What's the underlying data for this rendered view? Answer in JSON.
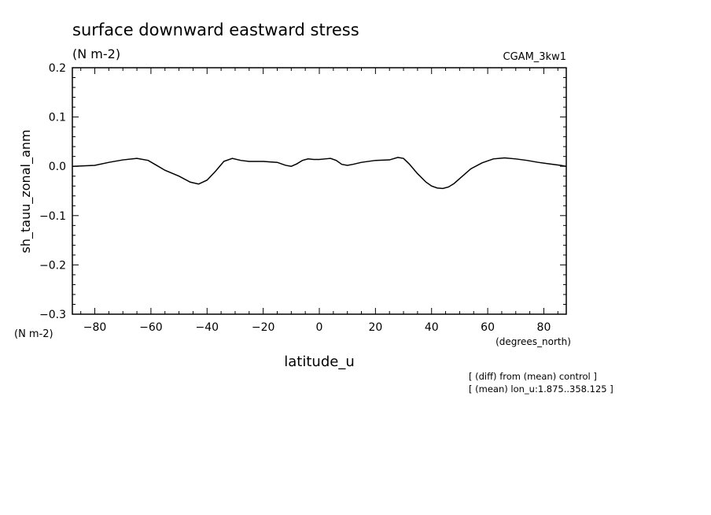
{
  "chart_data": {
    "type": "line",
    "title": "surface downward eastward stress",
    "title_units": "(N m-2)",
    "dataset_label": "CGAM_3kw1",
    "ylabel": "sh_tauu_zonal_anm",
    "y_units": "(N m-2)",
    "xlabel": "latitude_u",
    "x_units": "(degrees_north)",
    "xlim": [
      -88,
      88
    ],
    "ylim": [
      -0.3,
      0.2
    ],
    "xticks": [
      -80,
      -60,
      -40,
      -20,
      0,
      20,
      40,
      60,
      80
    ],
    "xtick_labels": [
      "−80",
      "−60",
      "−40",
      "−20",
      "0",
      "20",
      "40",
      "60",
      "80"
    ],
    "yticks": [
      0.2,
      0.1,
      0.0,
      -0.1,
      -0.2,
      -0.3
    ],
    "ytick_labels": [
      "0.2",
      "0.1",
      "0.0",
      "−0.1",
      "−0.2",
      "−0.3"
    ],
    "grid": false,
    "line_color": "#000000",
    "notes": [
      "[ (diff) from (mean) control ]",
      "[ (mean) lon_u:1.875..358.125 ]"
    ],
    "x": [
      -88,
      -80,
      -75,
      -70,
      -65,
      -61,
      -58,
      -55,
      -50,
      -46,
      -43,
      -40,
      -37,
      -34,
      -31,
      -28,
      -25,
      -20,
      -15,
      -12,
      -10,
      -8,
      -6,
      -4,
      -2,
      0,
      2,
      4,
      6,
      8,
      10,
      12,
      15,
      20,
      25,
      28,
      30,
      32,
      35,
      38,
      40,
      42,
      44,
      46,
      48,
      50,
      54,
      58,
      62,
      66,
      70,
      74,
      78,
      82,
      86,
      88
    ],
    "y": [
      0.0,
      0.002,
      0.008,
      0.013,
      0.016,
      0.012,
      0.002,
      -0.008,
      -0.02,
      -0.032,
      -0.036,
      -0.028,
      -0.01,
      0.01,
      0.016,
      0.012,
      0.01,
      0.01,
      0.008,
      0.002,
      0.0,
      0.005,
      0.012,
      0.015,
      0.014,
      0.014,
      0.015,
      0.016,
      0.012,
      0.004,
      0.002,
      0.004,
      0.008,
      0.012,
      0.013,
      0.018,
      0.016,
      0.005,
      -0.015,
      -0.032,
      -0.04,
      -0.044,
      -0.045,
      -0.042,
      -0.035,
      -0.025,
      -0.005,
      0.007,
      0.015,
      0.017,
      0.015,
      0.012,
      0.008,
      0.005,
      0.002,
      0.0
    ]
  }
}
